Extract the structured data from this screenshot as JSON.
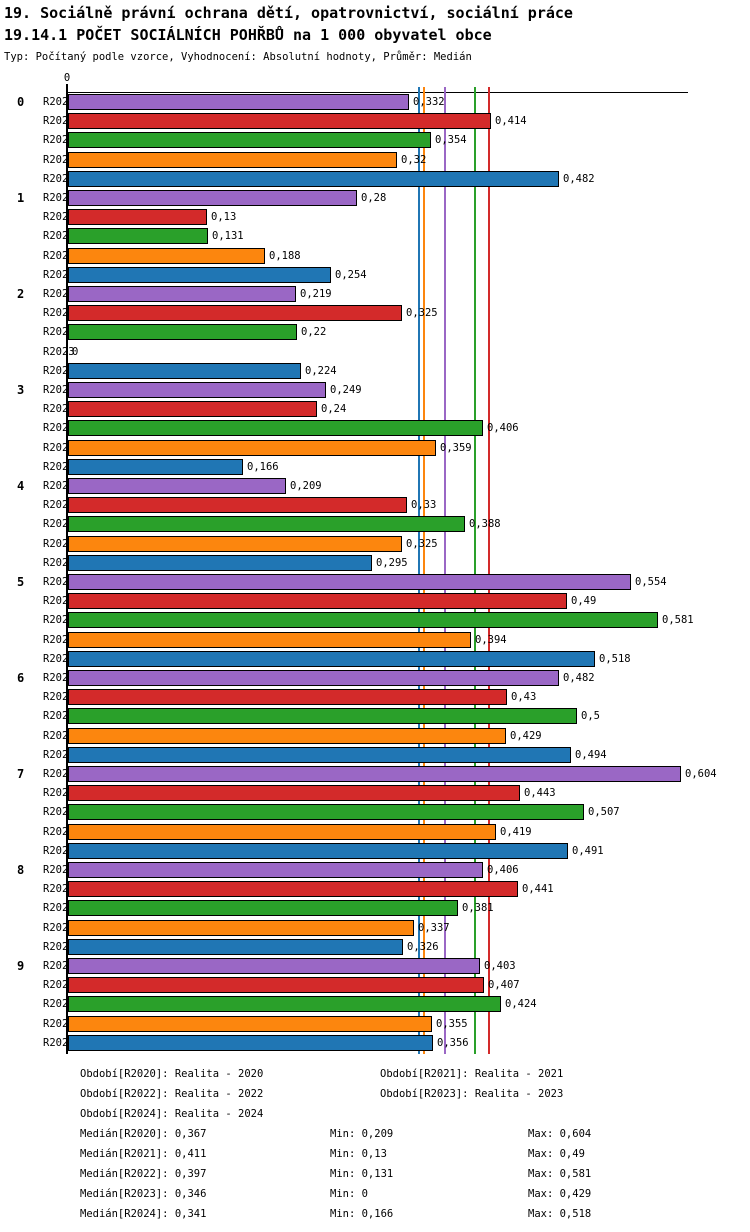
{
  "header": {
    "title1": "19. Sociálně právní ochrana dětí, opatrovnictví, sociální práce",
    "title2": "19.14.1 POČET SOCIÁLNÍCH POHŘBŮ na 1 000 obyvatel obce",
    "subtitle": "Typ: Počítaný podle vzorce, Vyhodnocení: Absolutní hodnoty, Průměr: Medián"
  },
  "chart_data": {
    "type": "bar",
    "orientation": "horizontal",
    "title": "19.14.1 POČET SOCIÁLNÍCH POHŘBŮ na 1 000 obyvatel obce",
    "axis_zero_label": "0",
    "xlim": [
      0,
      0.65
    ],
    "grid": false,
    "series_labels": [
      "R2020",
      "R2021",
      "R2022",
      "R2023",
      "R2024"
    ],
    "series_colors": [
      "#9a67c5",
      "#d32a2a",
      "#2aa02a",
      "#fc860e",
      "#2076b4"
    ],
    "categories": [
      "0",
      "1",
      "2",
      "3",
      "4",
      "5",
      "6",
      "7",
      "8",
      "9"
    ],
    "groups": [
      {
        "category": "0",
        "values": [
          0.332,
          0.414,
          0.354,
          0.32,
          0.482
        ],
        "labels": [
          "0,332",
          "0,414",
          "0,354",
          "0,32",
          "0,482"
        ]
      },
      {
        "category": "1",
        "values": [
          0.28,
          0.13,
          0.131,
          0.188,
          0.254
        ],
        "labels": [
          "0,28",
          "0,13",
          "0,131",
          "0,188",
          "0,254"
        ]
      },
      {
        "category": "2",
        "values": [
          0.219,
          0.325,
          0.22,
          0,
          0.224
        ],
        "labels": [
          "0,219",
          "0,325",
          "0,22",
          "0",
          "0,224"
        ]
      },
      {
        "category": "3",
        "values": [
          0.249,
          0.24,
          0.406,
          0.359,
          0.166
        ],
        "labels": [
          "0,249",
          "0,24",
          "0,406",
          "0,359",
          "0,166"
        ]
      },
      {
        "category": "4",
        "values": [
          0.209,
          0.33,
          0.388,
          0.325,
          0.295
        ],
        "labels": [
          "0,209",
          "0,33",
          "0,388",
          "0,325",
          "0,295"
        ]
      },
      {
        "category": "5",
        "values": [
          0.554,
          0.49,
          0.581,
          0.394,
          0.518
        ],
        "labels": [
          "0,554",
          "0,49",
          "0,581",
          "0,394",
          "0,518"
        ]
      },
      {
        "category": "6",
        "values": [
          0.482,
          0.43,
          0.5,
          0.429,
          0.494
        ],
        "labels": [
          "0,482",
          "0,43",
          "0,5",
          "0,429",
          "0,494"
        ]
      },
      {
        "category": "7",
        "values": [
          0.604,
          0.443,
          0.507,
          0.419,
          0.491
        ],
        "labels": [
          "0,604",
          "0,443",
          "0,507",
          "0,419",
          "0,491"
        ]
      },
      {
        "category": "8",
        "values": [
          0.406,
          0.441,
          0.381,
          0.337,
          0.326
        ],
        "labels": [
          "0,406",
          "0,441",
          "0,381",
          "0,337",
          "0,326"
        ]
      },
      {
        "category": "9",
        "values": [
          0.403,
          0.407,
          0.424,
          0.355,
          0.356
        ],
        "labels": [
          "0,403",
          "0,407",
          "0,424",
          "0,355",
          "0,356"
        ]
      }
    ],
    "median_lines": [
      {
        "series": "R2024",
        "value": 0.341,
        "color": "#2076b4"
      },
      {
        "series": "R2023",
        "value": 0.346,
        "color": "#fc860e"
      },
      {
        "series": "R2020",
        "value": 0.367,
        "color": "#9a67c5"
      },
      {
        "series": "R2022",
        "value": 0.397,
        "color": "#2aa02a"
      },
      {
        "series": "R2021",
        "value": 0.411,
        "color": "#d32a2a"
      }
    ]
  },
  "legend": {
    "period_rows": [
      {
        "col1": "Období[R2020]: Realita - 2020",
        "col2": "Období[R2021]: Realita - 2021"
      },
      {
        "col1": "Období[R2022]: Realita - 2022",
        "col2": "Období[R2023]: Realita - 2023"
      },
      {
        "col1": "Období[R2024]: Realita - 2024",
        "col2": ""
      }
    ],
    "stat_rows": [
      {
        "median": "Medián[R2020]: 0,367",
        "min": "Min: 0,209",
        "max": "Max: 0,604"
      },
      {
        "median": "Medián[R2021]: 0,411",
        "min": "Min: 0,13",
        "max": "Max: 0,49"
      },
      {
        "median": "Medián[R2022]: 0,397",
        "min": "Min: 0,131",
        "max": "Max: 0,581"
      },
      {
        "median": "Medián[R2023]: 0,346",
        "min": "Min: 0",
        "max": "Max: 0,429"
      },
      {
        "median": "Medián[R2024]: 0,341",
        "min": "Min: 0,166",
        "max": "Max: 0,518"
      }
    ]
  }
}
